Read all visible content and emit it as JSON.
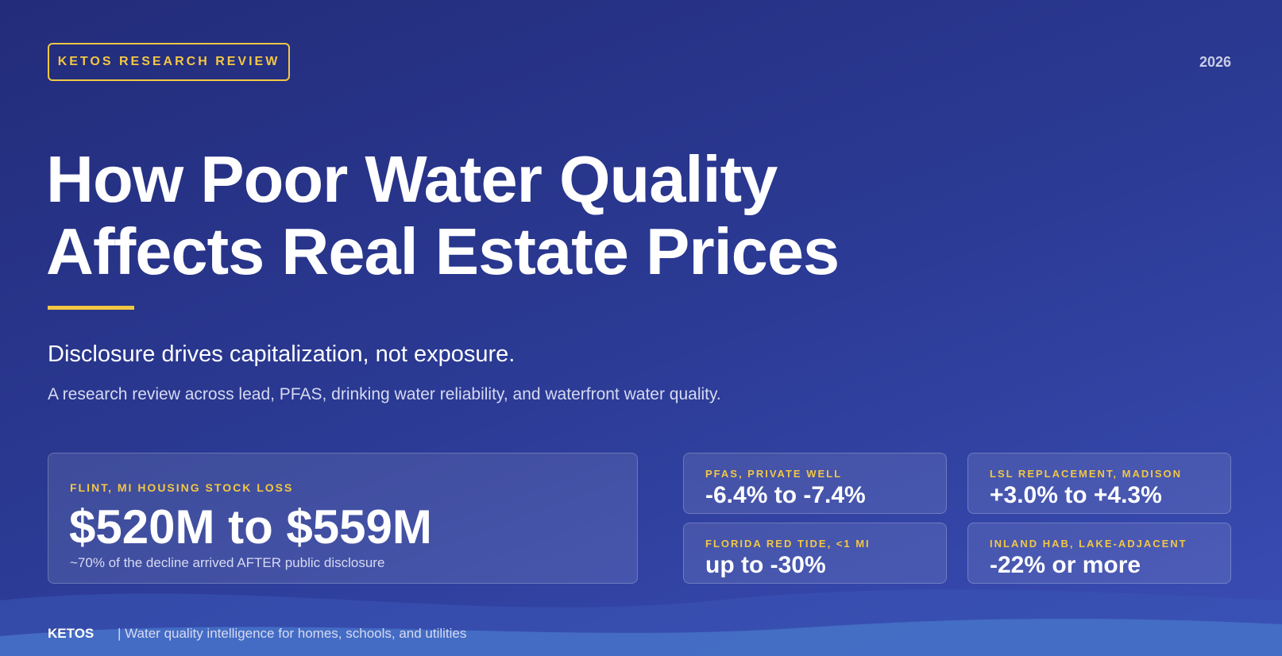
{
  "header": {
    "badge": "KETOS RESEARCH REVIEW",
    "year": "2026"
  },
  "hero": {
    "title_lines": [
      "How Poor Water Quality",
      "Affects Real Estate Prices"
    ],
    "subtitle": "Disclosure drives capitalization, not exposure.",
    "description": "A research review across lead, PFAS, drinking water reliability, and waterfront water quality."
  },
  "stats": {
    "featured": {
      "label": "FLINT, MI HOUSING STOCK LOSS",
      "value": "$520M to $559M",
      "note": "~70% of the decline arrived AFTER public disclosure"
    },
    "cards": [
      {
        "label": "PFAS, PRIVATE WELL",
        "value": "-6.4% to -7.4%"
      },
      {
        "label": "LSL REPLACEMENT, MADISON",
        "value": "+3.0% to +4.3%"
      },
      {
        "label": "FLORIDA RED TIDE, <1 MI",
        "value": "up to -30%"
      },
      {
        "label": "INLAND HAB, LAKE-ADJACENT",
        "value": "-22% or more"
      }
    ]
  },
  "footer": {
    "brand": "KETOS",
    "tagline": "| Water quality intelligence for homes, schools, and utilities"
  }
}
